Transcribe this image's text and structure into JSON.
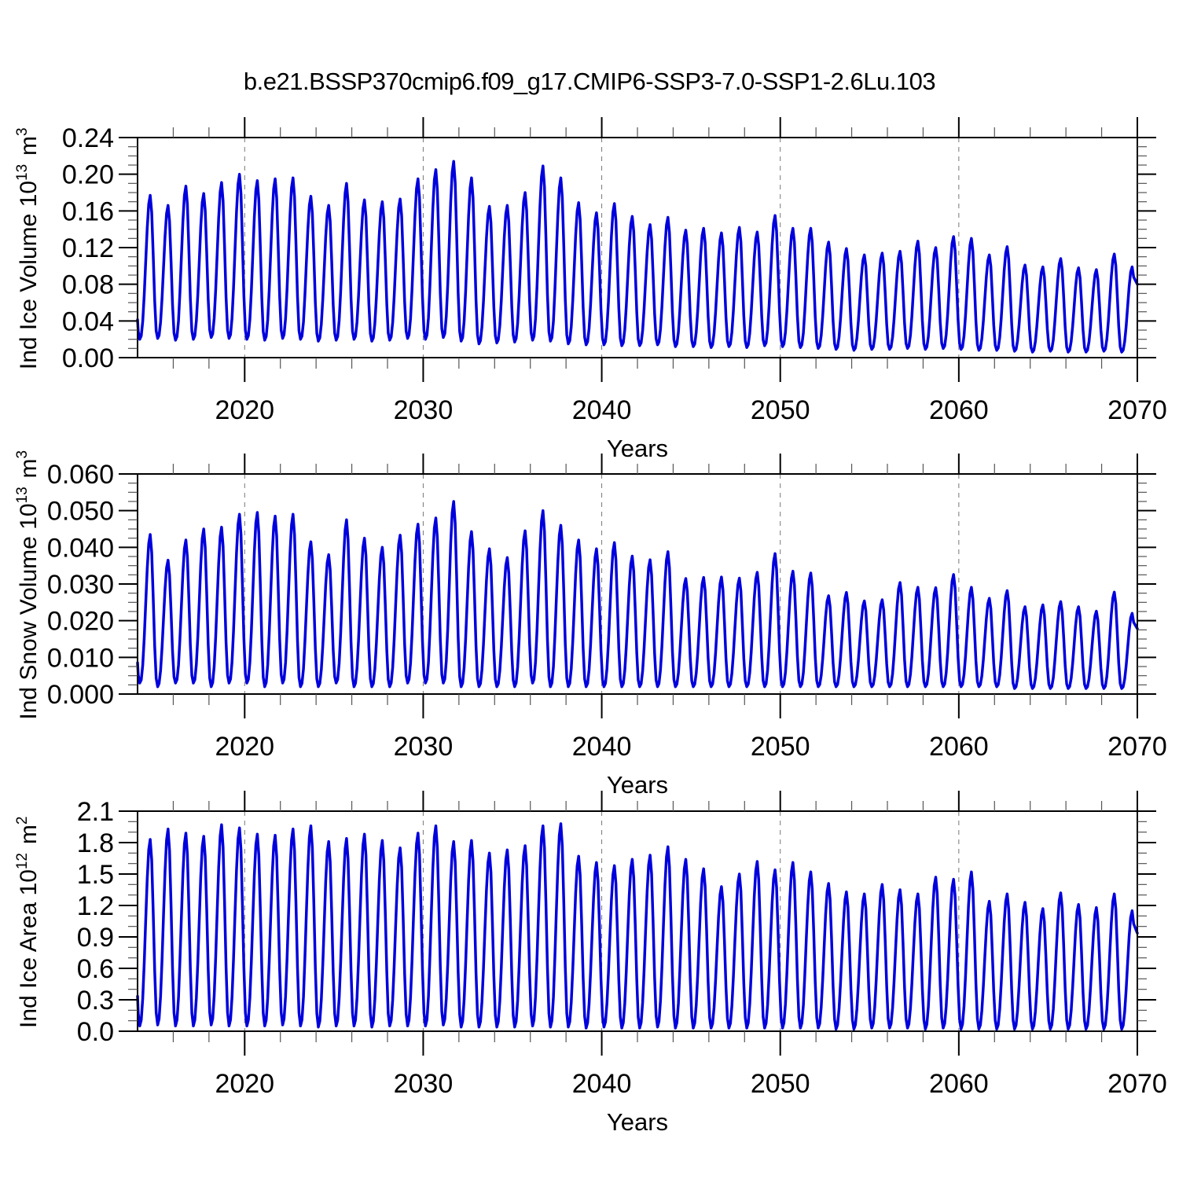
{
  "title": "b.e21.BSSP370cmip6.f09_g17.CMIP6-SSP3-7.0-SSP1-2.6Lu.103",
  "style": {
    "line_color": "#0000dd",
    "axis_color": "#000000",
    "minor_tick_color": "#555555",
    "grid_color": "#777777",
    "background": "#ffffff"
  },
  "chart_data": [
    {
      "type": "line",
      "name": "ice-volume",
      "title": "b.e21.BSSP370cmip6.f09_g17.CMIP6-SSP3-7.0-SSP1-2.6Lu.103",
      "xlabel": "Years",
      "ylabel": "Ind Ice Volume 10^13 m^3",
      "ylabel_parts": [
        {
          "t": "Ind Ice Volume 10"
        },
        {
          "sup": "13"
        },
        {
          "t": " m"
        },
        {
          "sup": "3"
        }
      ],
      "xlim": [
        2014,
        2070
      ],
      "ylim": [
        0,
        0.24
      ],
      "xticks": [
        2020,
        2030,
        2040,
        2050,
        2060,
        2070
      ],
      "x_minor_step": 2,
      "grid_x": [
        2020,
        2030,
        2040,
        2050,
        2060
      ],
      "y_major_step": 0.04,
      "y_minor_step": 0.01,
      "y_decimals": 2,
      "legend": "none",
      "grid": "vertical-dashed",
      "start_year": 2014,
      "seasonal": {
        "trough_frac": 0.125,
        "peak_frac": 0.708,
        "shape_power": 1.25
      },
      "annual_peaks": [
        0.177,
        0.166,
        0.187,
        0.179,
        0.191,
        0.2,
        0.193,
        0.195,
        0.196,
        0.176,
        0.166,
        0.19,
        0.172,
        0.17,
        0.173,
        0.195,
        0.205,
        0.214,
        0.196,
        0.165,
        0.166,
        0.18,
        0.209,
        0.196,
        0.169,
        0.158,
        0.168,
        0.154,
        0.145,
        0.153,
        0.139,
        0.141,
        0.136,
        0.142,
        0.137,
        0.155,
        0.141,
        0.141,
        0.126,
        0.119,
        0.112,
        0.114,
        0.116,
        0.127,
        0.12,
        0.132,
        0.13,
        0.112,
        0.121,
        0.101,
        0.099,
        0.108,
        0.098,
        0.096,
        0.113,
        0.099
      ],
      "annual_troughs": [
        0.02,
        0.021,
        0.019,
        0.02,
        0.022,
        0.021,
        0.02,
        0.019,
        0.021,
        0.02,
        0.018,
        0.019,
        0.02,
        0.018,
        0.019,
        0.021,
        0.02,
        0.022,
        0.018,
        0.015,
        0.016,
        0.017,
        0.019,
        0.018,
        0.015,
        0.014,
        0.014,
        0.013,
        0.013,
        0.014,
        0.012,
        0.012,
        0.011,
        0.012,
        0.011,
        0.013,
        0.012,
        0.011,
        0.01,
        0.009,
        0.008,
        0.009,
        0.009,
        0.01,
        0.009,
        0.01,
        0.009,
        0.008,
        0.008,
        0.007,
        0.006,
        0.007,
        0.006,
        0.006,
        0.007,
        0.006,
        0.006
      ]
    },
    {
      "type": "line",
      "name": "snow-volume",
      "xlabel": "Years",
      "ylabel": "Ind Snow Volume 10^13 m^3",
      "ylabel_parts": [
        {
          "t": "Ind Snow Volume 10"
        },
        {
          "sup": "13"
        },
        {
          "t": " m"
        },
        {
          "sup": "3"
        }
      ],
      "xlim": [
        2014,
        2070
      ],
      "ylim": [
        0,
        0.06
      ],
      "xticks": [
        2020,
        2030,
        2040,
        2050,
        2060,
        2070
      ],
      "x_minor_step": 2,
      "grid_x": [
        2020,
        2030,
        2040,
        2050,
        2060
      ],
      "y_major_step": 0.01,
      "y_minor_step": 0.0025,
      "y_decimals": 3,
      "legend": "none",
      "grid": "vertical-dashed",
      "start_year": 2014,
      "seasonal": {
        "trough_frac": 0.125,
        "peak_frac": 0.708,
        "shape_power": 1.25
      },
      "annual_peaks": [
        0.0435,
        0.0365,
        0.042,
        0.045,
        0.0455,
        0.049,
        0.0495,
        0.0485,
        0.049,
        0.0415,
        0.038,
        0.0475,
        0.0425,
        0.04,
        0.0433,
        0.0463,
        0.048,
        0.0525,
        0.0443,
        0.0396,
        0.0372,
        0.0445,
        0.05,
        0.046,
        0.042,
        0.0396,
        0.0413,
        0.0376,
        0.0366,
        0.0388,
        0.0315,
        0.0318,
        0.0319,
        0.0316,
        0.0332,
        0.0383,
        0.0335,
        0.033,
        0.0268,
        0.0277,
        0.0254,
        0.0257,
        0.0304,
        0.0291,
        0.029,
        0.0326,
        0.0291,
        0.0261,
        0.0282,
        0.0238,
        0.0243,
        0.0252,
        0.0238,
        0.0226,
        0.0278,
        0.022
      ],
      "annual_troughs": [
        0.003,
        0.002,
        0.003,
        0.003,
        0.002,
        0.003,
        0.003,
        0.002,
        0.003,
        0.002,
        0.002,
        0.003,
        0.002,
        0.002,
        0.002,
        0.003,
        0.003,
        0.003,
        0.002,
        0.002,
        0.002,
        0.002,
        0.003,
        0.002,
        0.002,
        0.002,
        0.002,
        0.002,
        0.002,
        0.002,
        0.002,
        0.002,
        0.002,
        0.002,
        0.002,
        0.002,
        0.002,
        0.002,
        0.002,
        0.002,
        0.002,
        0.002,
        0.002,
        0.002,
        0.002,
        0.002,
        0.002,
        0.002,
        0.002,
        0.0015,
        0.0015,
        0.0015,
        0.0015,
        0.0015,
        0.0015,
        0.0015,
        0.0015
      ]
    },
    {
      "type": "line",
      "name": "ice-area",
      "xlabel": "Years",
      "ylabel": "Ind Ice Area 10^12 m^2",
      "ylabel_parts": [
        {
          "t": "Ind Ice Area 10"
        },
        {
          "sup": "12"
        },
        {
          "t": " m"
        },
        {
          "sup": "2"
        }
      ],
      "xlim": [
        2014,
        2070
      ],
      "ylim": [
        0,
        2.1
      ],
      "xticks": [
        2020,
        2030,
        2040,
        2050,
        2060,
        2070
      ],
      "x_minor_step": 2,
      "grid_x": [
        2020,
        2030,
        2040,
        2050,
        2060
      ],
      "y_major_step": 0.3,
      "y_minor_step": 0.1,
      "y_decimals": 1,
      "legend": "none",
      "grid": "vertical-dashed",
      "start_year": 2014,
      "seasonal": {
        "trough_frac": 0.125,
        "peak_frac": 0.708,
        "shape_power": 1.15
      },
      "annual_peaks": [
        1.83,
        1.93,
        1.89,
        1.86,
        1.97,
        1.94,
        1.88,
        1.87,
        1.93,
        1.96,
        1.81,
        1.84,
        1.88,
        1.82,
        1.75,
        1.89,
        1.96,
        1.81,
        1.82,
        1.7,
        1.73,
        1.77,
        1.96,
        1.98,
        1.67,
        1.61,
        1.58,
        1.64,
        1.68,
        1.76,
        1.64,
        1.55,
        1.38,
        1.5,
        1.62,
        1.54,
        1.61,
        1.52,
        1.41,
        1.33,
        1.31,
        1.4,
        1.35,
        1.31,
        1.47,
        1.45,
        1.52,
        1.24,
        1.31,
        1.23,
        1.17,
        1.32,
        1.21,
        1.18,
        1.31,
        1.15
      ],
      "annual_troughs": [
        0.05,
        0.06,
        0.05,
        0.05,
        0.06,
        0.05,
        0.05,
        0.05,
        0.06,
        0.05,
        0.04,
        0.05,
        0.05,
        0.04,
        0.05,
        0.05,
        0.05,
        0.06,
        0.04,
        0.04,
        0.04,
        0.04,
        0.05,
        0.04,
        0.04,
        0.03,
        0.04,
        0.03,
        0.03,
        0.04,
        0.03,
        0.03,
        0.03,
        0.03,
        0.03,
        0.03,
        0.03,
        0.03,
        0.03,
        0.02,
        0.02,
        0.03,
        0.03,
        0.03,
        0.02,
        0.03,
        0.02,
        0.02,
        0.02,
        0.02,
        0.02,
        0.02,
        0.02,
        0.02,
        0.02,
        0.02,
        0.02
      ]
    }
  ]
}
